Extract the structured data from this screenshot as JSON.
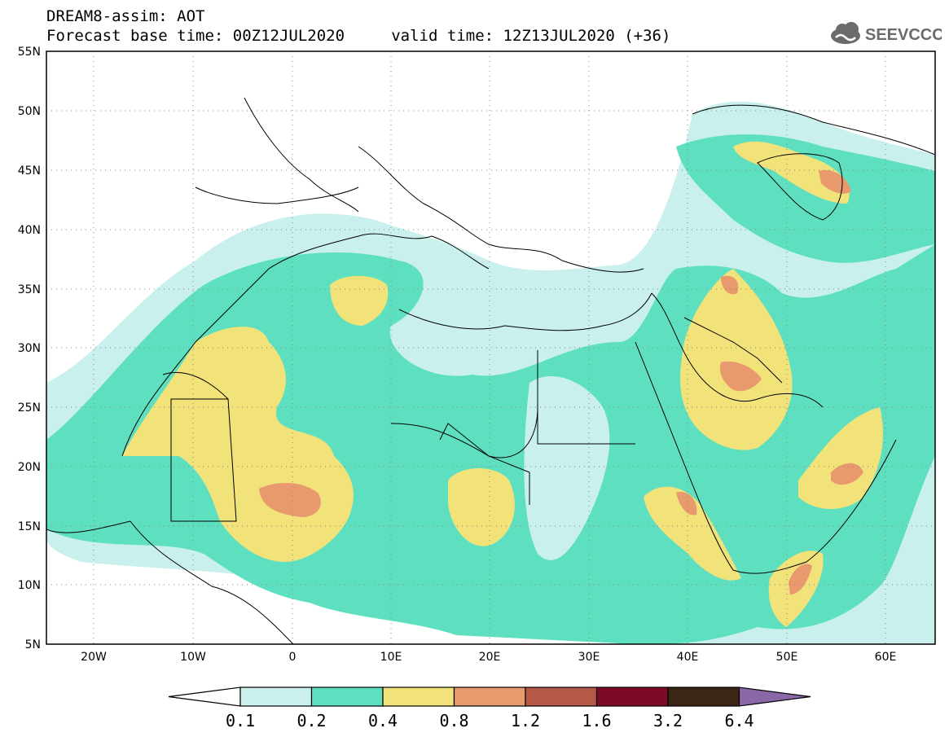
{
  "header": {
    "title_line1": "DREAM8-assim: AOT",
    "title_line2": "Forecast base time: 00Z12JUL2020     valid time: 12Z13JUL2020 (+36)"
  },
  "logo": {
    "text": "SEEVCCC",
    "icon": "cloud-icon"
  },
  "map": {
    "lat_labels": [
      "55N",
      "50N",
      "45N",
      "40N",
      "35N",
      "30N",
      "25N",
      "20N",
      "15N",
      "10N",
      "5N"
    ],
    "lon_labels": [
      "20W",
      "10W",
      "0",
      "10E",
      "20E",
      "30E",
      "40E",
      "50E",
      "60E"
    ],
    "lon_range": [
      -25,
      65
    ],
    "lat_range": [
      5,
      55
    ]
  },
  "colorbar": {
    "ticks": [
      "0.1",
      "0.2",
      "0.4",
      "0.8",
      "1.2",
      "1.6",
      "3.2",
      "6.4"
    ],
    "colors": [
      "#ffffff",
      "#c9f0ec",
      "#5ee0c0",
      "#f2e27a",
      "#e89a6e",
      "#b45848",
      "#7e0a2a",
      "#3b2616",
      "#8a68a8"
    ]
  }
}
